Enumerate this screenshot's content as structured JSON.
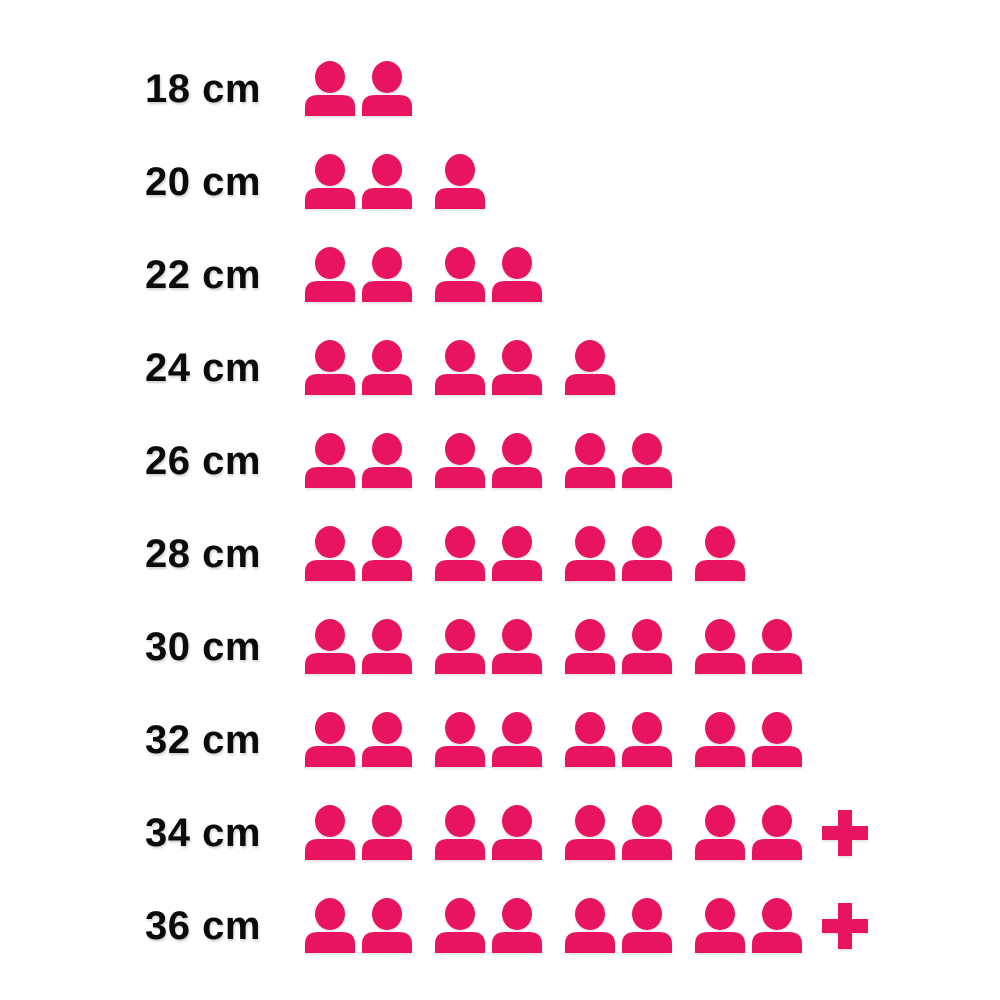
{
  "page": {
    "background_color": "#ffffff",
    "label_color": "#0b0b0b",
    "accent_color": "#E8145F"
  },
  "chart_data": {
    "type": "bar",
    "variant": "pictogram",
    "unit_icon": "person-icon",
    "overflow_icon": "plus-icon",
    "icon_color": "#E8145F",
    "group_size": 2,
    "categories": [
      "18 cm",
      "20 cm",
      "22 cm",
      "24 cm",
      "26 cm",
      "28 cm",
      "30 cm",
      "32 cm",
      "34 cm",
      "36 cm"
    ],
    "values": [
      2,
      3,
      4,
      5,
      6,
      7,
      8,
      8,
      8,
      8
    ],
    "has_overflow_plus": [
      false,
      false,
      false,
      false,
      false,
      false,
      false,
      false,
      true,
      true
    ],
    "display_values": [
      "2",
      "3",
      "4",
      "5",
      "6",
      "7",
      "8",
      "8",
      "8+",
      "8+"
    ],
    "title": "",
    "xlabel": "",
    "ylabel": "",
    "legend": null,
    "grid": false
  }
}
